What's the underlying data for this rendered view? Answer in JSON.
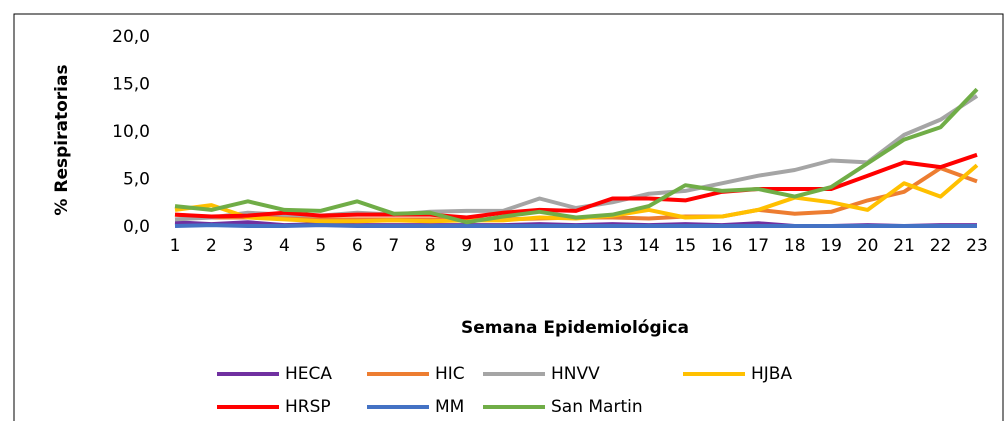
{
  "chart_data": {
    "type": "line",
    "categories": [
      "1",
      "2",
      "3",
      "4",
      "5",
      "6",
      "7",
      "8",
      "9",
      "10",
      "11",
      "12",
      "13",
      "14",
      "15",
      "16",
      "17",
      "18",
      "19",
      "20",
      "21",
      "22",
      "23"
    ],
    "y_label": "% Respiratorias",
    "x_label": "Semana Epidemiológica",
    "ylim": [
      0,
      20
    ],
    "yticks": [
      {
        "value": 0,
        "label": "0,0"
      },
      {
        "value": 5,
        "label": "5,0"
      },
      {
        "value": 10,
        "label": "10,0"
      },
      {
        "value": 15,
        "label": "15,0"
      },
      {
        "value": 20,
        "label": "20,0"
      }
    ],
    "series": [
      {
        "name": "HECA",
        "color": "#7030a0",
        "values": [
          0.5,
          0.3,
          0.5,
          0.2,
          0.3,
          0.2,
          0.2,
          0.2,
          0.2,
          0.2,
          0.3,
          0.2,
          0.3,
          0.2,
          0.3,
          0.2,
          0.4,
          0.1,
          0.1,
          0.2,
          0.1,
          0.2,
          0.2
        ]
      },
      {
        "name": "HIC",
        "color": "#ed7d31",
        "values": [
          1.3,
          1.0,
          1.0,
          1.2,
          0.8,
          0.8,
          0.8,
          0.8,
          0.8,
          0.8,
          0.9,
          1.0,
          1.0,
          0.9,
          1.1,
          1.1,
          1.8,
          1.4,
          1.6,
          2.8,
          3.7,
          6.2,
          4.8
        ]
      },
      {
        "name": "HNVV",
        "color": "#a5a5a5",
        "values": [
          0.8,
          1.0,
          1.5,
          1.3,
          1.2,
          1.5,
          1.3,
          1.6,
          1.7,
          1.7,
          3.0,
          2.0,
          2.6,
          3.5,
          3.8,
          4.6,
          5.4,
          6.0,
          7.0,
          6.8,
          9.7,
          11.3,
          13.8
        ]
      },
      {
        "name": "HJBA",
        "color": "#ffc000",
        "values": [
          1.8,
          2.3,
          1.0,
          0.8,
          0.6,
          0.6,
          0.7,
          0.6,
          0.7,
          0.7,
          1.0,
          0.9,
          1.2,
          1.8,
          1.0,
          1.1,
          1.8,
          3.1,
          2.6,
          1.8,
          4.6,
          3.2,
          6.5
        ]
      },
      {
        "name": "HRSP",
        "color": "#ff0000",
        "values": [
          1.3,
          1.1,
          1.2,
          1.5,
          1.2,
          1.3,
          1.3,
          1.3,
          1.0,
          1.5,
          1.8,
          1.7,
          3.0,
          3.0,
          2.8,
          3.7,
          4.0,
          4.0,
          4.0,
          5.4,
          6.8,
          6.3,
          7.6
        ]
      },
      {
        "name": "MM",
        "color": "#4472c4",
        "values": [
          0.1,
          0.2,
          0.1,
          0.1,
          0.2,
          0.1,
          0.1,
          0.1,
          0.1,
          0.1,
          0.1,
          0.1,
          0.1,
          0.1,
          0.1,
          0.1,
          0.1,
          0.1,
          0.1,
          0.1,
          0.1,
          0.1,
          0.1
        ]
      },
      {
        "name": "San Martin",
        "color": "#70ad47",
        "values": [
          2.2,
          1.8,
          2.7,
          1.8,
          1.7,
          2.7,
          1.4,
          1.5,
          0.5,
          1.1,
          1.6,
          1.0,
          1.3,
          2.2,
          4.4,
          3.8,
          4.0,
          3.2,
          4.2,
          6.7,
          9.2,
          10.5,
          14.5
        ]
      }
    ]
  }
}
